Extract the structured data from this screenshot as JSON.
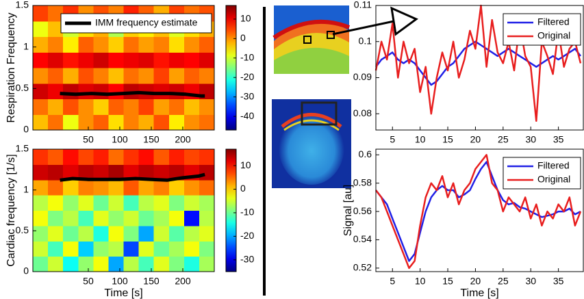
{
  "chart_data": [
    {
      "type": "heatmap",
      "colormap": "jet",
      "ylabel": "Respiration Frequency",
      "xlim": [
        -38,
        250
      ],
      "xticks": [
        50,
        100,
        150,
        200
      ],
      "ylim": [
        0,
        1.5
      ],
      "yticks": [
        0,
        0.5,
        1,
        1.5
      ],
      "clim": [
        -47,
        17
      ],
      "cticks": [
        10,
        0,
        -10,
        -20,
        -30,
        -40
      ],
      "legend": "upper right",
      "z": [
        [
          -3,
          2,
          -8,
          0,
          3,
          -5,
          1,
          -2,
          4,
          -6,
          0,
          2
        ],
        [
          2,
          -2,
          4,
          0,
          -4,
          3,
          1,
          5,
          -1,
          2,
          -3,
          0
        ],
        [
          12,
          10,
          13,
          11,
          12,
          9,
          13,
          12,
          11,
          12,
          10,
          13
        ],
        [
          0,
          3,
          -2,
          4,
          1,
          -3,
          2,
          0,
          5,
          -1,
          3,
          1
        ],
        [
          9,
          11,
          8,
          10,
          12,
          9,
          10,
          11,
          8,
          10,
          9,
          11
        ],
        [
          -2,
          1,
          -6,
          3,
          0,
          -4,
          2,
          -1,
          1,
          -5,
          0,
          3
        ],
        [
          -8,
          -3,
          -10,
          -5,
          -2,
          -12,
          -4,
          -6,
          -3,
          -9,
          -5,
          -2
        ],
        [
          5,
          2,
          6,
          0,
          4,
          1,
          7,
          3,
          -2,
          5,
          2,
          4
        ]
      ],
      "series": [
        {
          "name": "IMM frequency estimate",
          "color": "#000000",
          "x": [
            5,
            30,
            55,
            80,
            105,
            130,
            155,
            180,
            205,
            230,
            235
          ],
          "values": [
            0.44,
            0.43,
            0.44,
            0.43,
            0.44,
            0.45,
            0.44,
            0.44,
            0.43,
            0.41,
            0.41
          ]
        }
      ]
    },
    {
      "type": "heatmap",
      "colormap": "jet",
      "ylabel": "Cardiac frequency [1/s]",
      "xlabel": "Time [s]",
      "xlim": [
        -38,
        250
      ],
      "xticks": [
        50,
        100,
        150,
        200
      ],
      "ylim": [
        0,
        1.5
      ],
      "yticks": [
        0,
        0.5,
        1,
        1.5
      ],
      "clim": [
        -35,
        17
      ],
      "cticks": [
        10,
        0,
        -10,
        -20,
        -30
      ],
      "z": [
        [
          -10,
          -5,
          -15,
          -8,
          -3,
          -20,
          -6,
          -12,
          -4,
          -9,
          -14,
          -7
        ],
        [
          -5,
          -12,
          -3,
          -18,
          -8,
          -6,
          -25,
          -4,
          -10,
          -7,
          -3,
          -9
        ],
        [
          -8,
          -4,
          -10,
          -6,
          -14,
          -3,
          -9,
          -20,
          -5,
          -11,
          -6,
          -4
        ],
        [
          -3,
          -9,
          -6,
          -12,
          -4,
          -8,
          -5,
          -10,
          -7,
          -3,
          -28,
          -6
        ],
        [
          -6,
          -3,
          -8,
          -4,
          -10,
          -5,
          -12,
          -6,
          -4,
          -9,
          -5,
          -7
        ],
        [
          2,
          5,
          0,
          4,
          3,
          1,
          6,
          2,
          4,
          0,
          3,
          5
        ],
        [
          13,
          14,
          12,
          14,
          13,
          15,
          12,
          14,
          13,
          14,
          12,
          14
        ],
        [
          8,
          6,
          10,
          7,
          9,
          5,
          8,
          10,
          6,
          9,
          7,
          8
        ]
      ],
      "series": [
        {
          "color": "#000000",
          "x": [
            5,
            25,
            50,
            75,
            100,
            125,
            150,
            175,
            200,
            225,
            235
          ],
          "values": [
            1.12,
            1.14,
            1.13,
            1.13,
            1.13,
            1.14,
            1.13,
            1.12,
            1.15,
            1.17,
            1.19
          ]
        }
      ]
    },
    {
      "type": "line",
      "legend": "upper right",
      "xlim": [
        2,
        39.5
      ],
      "xticks": [
        5,
        10,
        15,
        20,
        25,
        30,
        35
      ],
      "ylim": [
        0.0755,
        0.11
      ],
      "yticks": [
        0.08,
        0.09,
        0.1,
        0.11
      ],
      "x": [
        2,
        3,
        4,
        5,
        6,
        7,
        8,
        9,
        10,
        11,
        12,
        13,
        14,
        15,
        16,
        17,
        18,
        19,
        20,
        21,
        22,
        23,
        24,
        25,
        26,
        27,
        28,
        29,
        30,
        31,
        32,
        33,
        34,
        35,
        36,
        37,
        38,
        39
      ],
      "series": [
        {
          "name": "Filtered",
          "color": "#1f1fe6",
          "values": [
            0.093,
            0.095,
            0.096,
            0.097,
            0.095,
            0.094,
            0.095,
            0.094,
            0.092,
            0.09,
            0.088,
            0.089,
            0.091,
            0.093,
            0.094,
            0.096,
            0.098,
            0.099,
            0.1,
            0.099,
            0.098,
            0.097,
            0.096,
            0.097,
            0.098,
            0.097,
            0.096,
            0.095,
            0.094,
            0.093,
            0.094,
            0.095,
            0.096,
            0.095,
            0.096,
            0.097,
            0.098,
            0.096
          ]
        },
        {
          "name": "Original",
          "color": "#e81e1e",
          "values": [
            0.092,
            0.1,
            0.095,
            0.105,
            0.09,
            0.1,
            0.094,
            0.098,
            0.086,
            0.093,
            0.08,
            0.09,
            0.097,
            0.092,
            0.1,
            0.09,
            0.095,
            0.103,
            0.098,
            0.11,
            0.093,
            0.106,
            0.097,
            0.094,
            0.1,
            0.092,
            0.105,
            0.096,
            0.093,
            0.078,
            0.1,
            0.096,
            0.091,
            0.103,
            0.093,
            0.098,
            0.1,
            0.094
          ]
        }
      ]
    },
    {
      "type": "line",
      "legend": "upper right",
      "ylabel": "Signal [au]",
      "xlabel": "Time [s]",
      "xlim": [
        2,
        39.5
      ],
      "xticks": [
        5,
        10,
        15,
        20,
        25,
        30,
        35
      ],
      "ylim": [
        0.5175,
        0.604
      ],
      "yticks": [
        0.52,
        0.54,
        0.56,
        0.58,
        0.6
      ],
      "x": [
        2,
        3,
        4,
        5,
        6,
        7,
        8,
        9,
        10,
        11,
        12,
        13,
        14,
        15,
        16,
        17,
        18,
        19,
        20,
        21,
        22,
        23,
        24,
        25,
        26,
        27,
        28,
        29,
        30,
        31,
        32,
        33,
        34,
        35,
        36,
        37,
        38,
        39
      ],
      "series": [
        {
          "name": "Filtered",
          "color": "#1f1fe6",
          "values": [
            0.575,
            0.57,
            0.565,
            0.555,
            0.545,
            0.535,
            0.525,
            0.53,
            0.545,
            0.56,
            0.57,
            0.575,
            0.578,
            0.575,
            0.575,
            0.57,
            0.572,
            0.575,
            0.583,
            0.59,
            0.595,
            0.585,
            0.575,
            0.568,
            0.565,
            0.566,
            0.563,
            0.562,
            0.56,
            0.558,
            0.556,
            0.557,
            0.558,
            0.56,
            0.56,
            0.562,
            0.558,
            0.56
          ]
        },
        {
          "name": "Original",
          "color": "#e81e1e",
          "values": [
            0.575,
            0.57,
            0.56,
            0.55,
            0.54,
            0.53,
            0.52,
            0.525,
            0.55,
            0.57,
            0.58,
            0.575,
            0.585,
            0.57,
            0.58,
            0.565,
            0.575,
            0.58,
            0.59,
            0.595,
            0.6,
            0.58,
            0.575,
            0.56,
            0.57,
            0.565,
            0.56,
            0.57,
            0.555,
            0.565,
            0.55,
            0.56,
            0.555,
            0.565,
            0.56,
            0.57,
            0.55,
            0.56
          ]
        }
      ]
    }
  ]
}
